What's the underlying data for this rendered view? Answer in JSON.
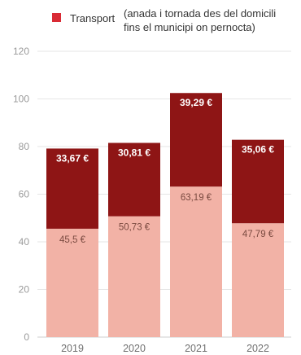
{
  "colors": {
    "top_series": "#8e1515",
    "bottom_series": "#f2b2a6",
    "legend_swatch": "#d92b35",
    "grid": "#e6e6e6",
    "axis": "#cfcfcf"
  },
  "legend": {
    "label": "Transport",
    "note_line1": "(anada i tornada des del domicili",
    "note_line2": "fins el municipi on pernocta)"
  },
  "chart_data": {
    "type": "bar",
    "stacked": true,
    "categories": [
      "2019",
      "2020",
      "2021",
      "2022"
    ],
    "series": [
      {
        "values": [
          45.5,
          50.73,
          63.19,
          47.79
        ],
        "labels": [
          "45,5 €",
          "50,73 €",
          "63,19 €",
          "47,79 €"
        ]
      },
      {
        "name": "Transport",
        "values": [
          33.67,
          30.81,
          39.29,
          35.06
        ],
        "labels": [
          "33,67 €",
          "30,81 €",
          "39,29 €",
          "35,06 €"
        ]
      }
    ],
    "yticks": [
      "0",
      "20",
      "40",
      "60",
      "80",
      "100",
      "120"
    ],
    "ylim": [
      0,
      120
    ],
    "grid": true,
    "legend_position": "top"
  }
}
